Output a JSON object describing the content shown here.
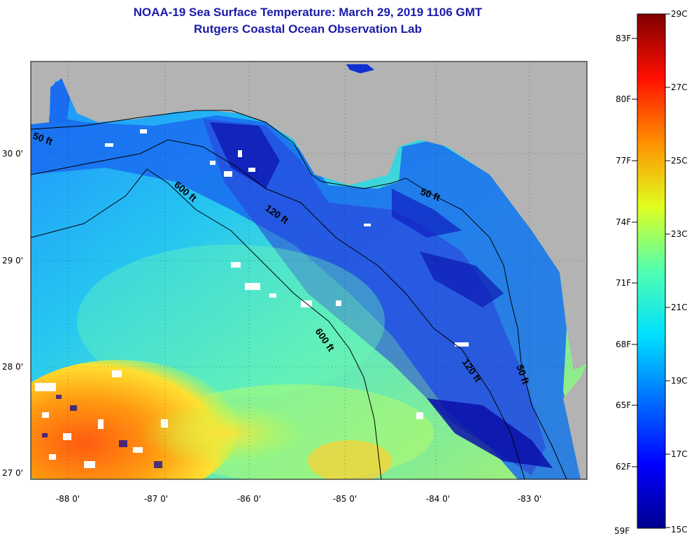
{
  "title": "NOAA-19 Sea Surface Temperature:  March 29, 2019 1106 GMT",
  "subtitle": "Rutgers Coastal Ocean Observation Lab",
  "lat_labels": [
    "30 0'",
    "29 0'",
    "28 0'",
    "27 0'"
  ],
  "lon_labels": [
    "-88 0'",
    "-87 0'",
    "-86 0'",
    "-85 0'",
    "-84 0'",
    "-83 0'"
  ],
  "depth_labels": {
    "d50_west": "50 ft",
    "d600_north": "600 ft",
    "d120_north": "120 ft",
    "d50_east": "50 ft",
    "d600_south": "600 ft",
    "d120_south": "120 ft",
    "d50_south": "50 ft"
  },
  "colorbar": {
    "fahrenheit": [
      "83F",
      "80F",
      "77F",
      "74F",
      "71F",
      "68F",
      "65F",
      "62F",
      "59F"
    ],
    "celsius": [
      "29C",
      "27C",
      "25C",
      "23C",
      "21C",
      "19C",
      "17C",
      "15C"
    ]
  },
  "colors": {
    "title": "#1a1aa8",
    "land": "#b3b3b3",
    "cold": "#00008f",
    "warm": "#800000"
  }
}
